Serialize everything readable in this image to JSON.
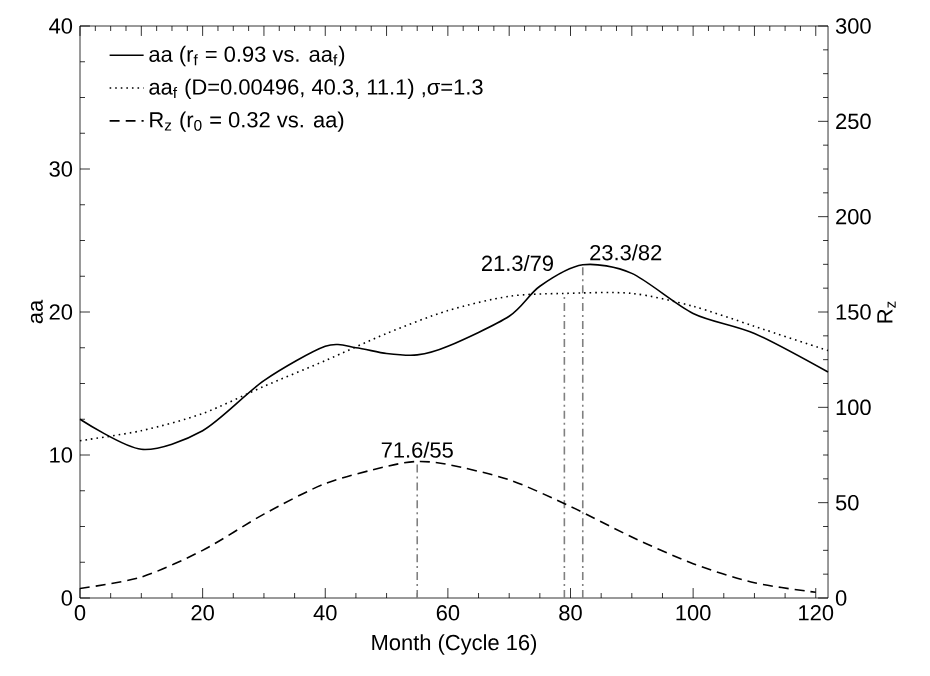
{
  "chart_data": {
    "type": "line",
    "xlabel": "Month (Cycle 16)",
    "ylabel": "aa",
    "y2label": "R$_{z}$",
    "xlim": [
      0,
      122
    ],
    "xticks": [
      0,
      20,
      40,
      60,
      80,
      100,
      120
    ],
    "ylim": [
      0,
      40
    ],
    "yticks": [
      0,
      10,
      20,
      30,
      40
    ],
    "y2lim": [
      0,
      300
    ],
    "y2ticks": [
      0,
      50,
      100,
      150,
      200,
      250,
      300
    ],
    "legend": "top left",
    "grid": false,
    "series": [
      {
        "name": "aa (r$_{f}$ = 0.93 vs. aa$_{f}$)",
        "color": "#000000",
        "line_style": "solid",
        "x": [
          0,
          10,
          20,
          30,
          40,
          45,
          50,
          55,
          60,
          70,
          75,
          82,
          90,
          100,
          110,
          122
        ],
        "values": [
          12.5,
          10.4,
          11.7,
          15.2,
          17.6,
          17.5,
          17.1,
          17.0,
          17.6,
          19.7,
          21.8,
          23.3,
          22.7,
          19.9,
          18.5,
          15.8
        ]
      },
      {
        "name": "aa$_{f}$ (D=0.00496, 40.3, 11.1) ,σ=1.3",
        "color": "#000000",
        "line_style": "dotted",
        "x": [
          0,
          10,
          20,
          30,
          40,
          50,
          60,
          70,
          79,
          90,
          100,
          110,
          122
        ],
        "values": [
          11.0,
          11.7,
          12.9,
          14.8,
          16.6,
          18.5,
          20.1,
          21.1,
          21.3,
          21.3,
          20.4,
          19.0,
          17.3
        ]
      },
      {
        "name": "R$_{z}$ (r$_{0}$ = 0.32 vs. aa)",
        "color": "#000000",
        "line_style": "dashed",
        "axis": "y2",
        "x": [
          0,
          10,
          20,
          30,
          40,
          50,
          55,
          60,
          70,
          80,
          90,
          100,
          110,
          120
        ],
        "values": [
          5,
          11,
          25,
          44,
          60,
          69,
          71.6,
          70,
          62,
          48,
          32,
          18,
          8,
          3
        ]
      }
    ],
    "ref_lines": [
      {
        "axis": "x",
        "value": 55,
        "color": "#808080",
        "line_style": "dashdot"
      },
      {
        "axis": "x",
        "value": 79,
        "color": "#808080",
        "line_style": "dashdot"
      },
      {
        "axis": "x",
        "value": 82,
        "color": "#808080",
        "line_style": "dashdot"
      }
    ],
    "annotations": [
      {
        "text": "71.6/55",
        "x": 55,
        "y": 9.5
      },
      {
        "text": "21.3/79",
        "x": 79,
        "y": 21.3
      },
      {
        "text": "23.3/82",
        "x": 82,
        "y": 23.3
      }
    ]
  }
}
